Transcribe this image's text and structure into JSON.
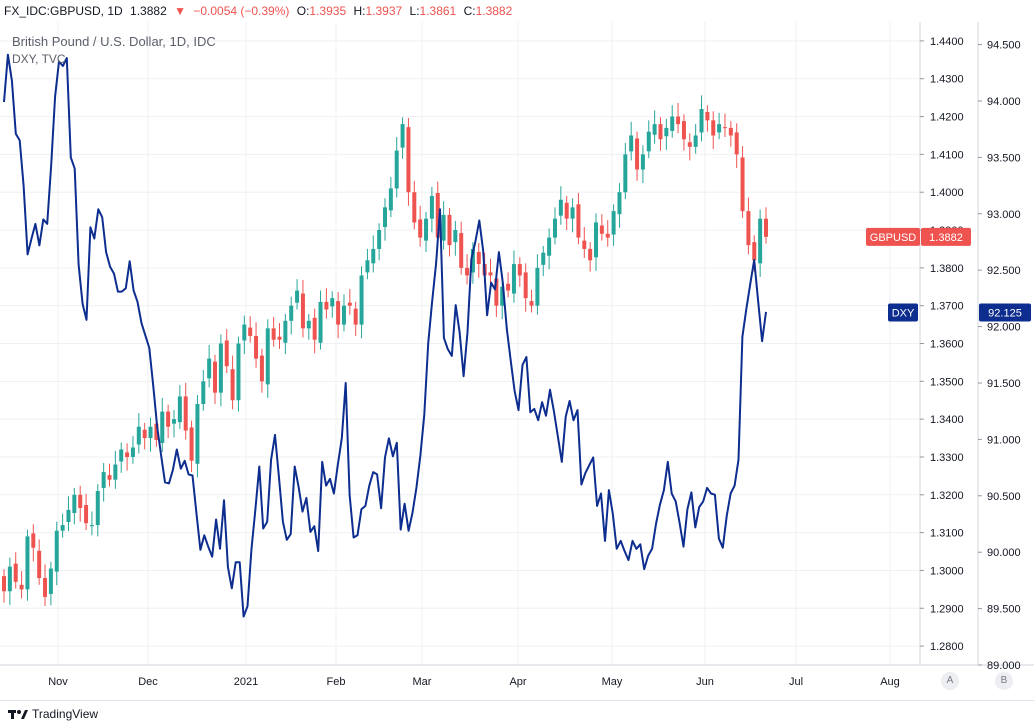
{
  "header": {
    "symbol": "FX_IDC:GBPUSD, 1D",
    "last": "1.3882",
    "arrow": "▼",
    "change": "−0.0054 (−0.39%)",
    "o_label": "O:",
    "o_value": "1.3935",
    "h_label": "H:",
    "h_value": "1.3937",
    "l_label": "L:",
    "l_value": "1.3861",
    "c_label": "C:",
    "c_value": "1.3882"
  },
  "legend": {
    "main": "British Pound / U.S. Dollar, 1D, IDC",
    "compare": "DXY, TVC"
  },
  "badges": {
    "gbpusd_label": "GBPUSD",
    "gbpusd_value": "1.3882",
    "dxy_label": "DXY",
    "dxy_value": "92.125"
  },
  "footer": {
    "brand": "TradingView",
    "btn_a": "A",
    "btn_b": "B"
  },
  "colors": {
    "up": "#26a69a",
    "down": "#ef5350",
    "dxy_line": "#0d2d8f",
    "grid": "#eef0f3",
    "axis_text": "#131722"
  },
  "chart_data": {
    "type": "line",
    "title": "British Pound / U.S. Dollar, 1D, IDC",
    "x_ticks": [
      "Nov",
      "Dec",
      "2021",
      "Feb",
      "Mar",
      "Apr",
      "May",
      "Jun",
      "Jul",
      "Aug"
    ],
    "y_left_label": "GBPUSD",
    "y_right_label": "DXY",
    "y_gbpusd_range": [
      1.275,
      1.445
    ],
    "y_gbpusd_ticks": [
      "1.4400",
      "1.4300",
      "1.4200",
      "1.4100",
      "1.4000",
      "1.3900",
      "1.3800",
      "1.3700",
      "1.3600",
      "1.3500",
      "1.3400",
      "1.3300",
      "1.3200",
      "1.3100",
      "1.3000",
      "1.2900",
      "1.2800"
    ],
    "y_dxy_range": [
      89.0,
      94.7
    ],
    "y_dxy_ticks": [
      "94.500",
      "94.000",
      "93.500",
      "93.000",
      "92.500",
      "92.000",
      "91.500",
      "91.000",
      "90.500",
      "90.000",
      "89.500",
      "89.000"
    ],
    "grid": true,
    "series": [
      {
        "name": "GBPUSD",
        "style": "candlestick",
        "close": [
          1.2945,
          1.301,
          1.297,
          1.295,
          1.309,
          1.306,
          1.298,
          1.293,
          1.3005,
          1.3105,
          1.312,
          1.316,
          1.32,
          1.3165,
          1.3125,
          1.312,
          1.321,
          1.326,
          1.324,
          1.328,
          1.332,
          1.33,
          1.3325,
          1.338,
          1.335,
          1.338,
          1.3345,
          1.342,
          1.338,
          1.34,
          1.346,
          1.337,
          1.329,
          1.344,
          1.35,
          1.356,
          1.347,
          1.36,
          1.354,
          1.345,
          1.36,
          1.365,
          1.362,
          1.356,
          1.35,
          1.364,
          1.361,
          1.361,
          1.366,
          1.37,
          1.374,
          1.364,
          1.366,
          1.361,
          1.371,
          1.369,
          1.372,
          1.365,
          1.37,
          1.37,
          1.365,
          1.378,
          1.382,
          1.385,
          1.39,
          1.396,
          1.401,
          1.411,
          1.418,
          1.4,
          1.392,
          1.388,
          1.393,
          1.399,
          1.388,
          1.394,
          1.386,
          1.39,
          1.38,
          1.378,
          1.385,
          1.381,
          1.378,
          1.378,
          1.37,
          1.375,
          1.374,
          1.381,
          1.378,
          1.372,
          1.37,
          1.38,
          1.384,
          1.388,
          1.393,
          1.398,
          1.393,
          1.396,
          1.388,
          1.385,
          1.382,
          1.392,
          1.389,
          1.388,
          1.395,
          1.4,
          1.41,
          1.415,
          1.406,
          1.41,
          1.416,
          1.418,
          1.414,
          1.417,
          1.42,
          1.418,
          1.414,
          1.412,
          1.415,
          1.422,
          1.419,
          1.415,
          1.418,
          1.417,
          1.415,
          1.41,
          1.395,
          1.386,
          1.382,
          1.393,
          1.3882
        ]
      },
      {
        "name": "DXY",
        "style": "line",
        "values": [
          93.99,
          94.41,
          94.18,
          93.71,
          93.65,
          93.25,
          92.64,
          92.78,
          92.91,
          92.72,
          92.95,
          92.91,
          93.42,
          94.04,
          94.35,
          94.31,
          94.38,
          93.5,
          93.4,
          92.55,
          92.2,
          92.06,
          92.88,
          92.78,
          93.04,
          92.97,
          92.66,
          92.53,
          92.47,
          92.31,
          92.31,
          92.34,
          92.58,
          92.32,
          92.22,
          92.03,
          91.92,
          91.81,
          91.47,
          91.11,
          90.86,
          90.62,
          90.61,
          90.73,
          90.91,
          90.74,
          90.81,
          90.69,
          90.68,
          90.34,
          90.02,
          90.15,
          90.05,
          89.96,
          90.29,
          90.03,
          90.46,
          89.87,
          89.68,
          89.91,
          89.91,
          89.43,
          89.52,
          90.03,
          90.38,
          90.76,
          90.21,
          90.27,
          90.82,
          91.04,
          90.67,
          90.27,
          90.11,
          90.16,
          90.76,
          90.58,
          90.36,
          90.48,
          90.18,
          90.23,
          90.01,
          90.8,
          90.59,
          90.65,
          90.52,
          90.78,
          91.01,
          91.5,
          90.51,
          90.13,
          90.15,
          90.38,
          90.41,
          90.59,
          90.71,
          90.69,
          90.39,
          90.84,
          91.01,
          90.85,
          90.97,
          90.2,
          90.43,
          90.19,
          90.35,
          90.57,
          90.86,
          91.22,
          91.85,
          92.22,
          92.56,
          93.04,
          91.9,
          91.8,
          91.74,
          92.19,
          91.95,
          91.56,
          91.95,
          92.6,
          92.75,
          92.94,
          92.67,
          92.1,
          92.39,
          92.33,
          92.66,
          92.39,
          91.98,
          91.7,
          91.43,
          91.26,
          91.66,
          91.73,
          91.24,
          91.27,
          91.17,
          91.33,
          91.21,
          91.44,
          91.25,
          91.03,
          90.8,
          91.2,
          91.34,
          91.17,
          91.26,
          90.6,
          90.7,
          90.77,
          90.84,
          90.41,
          90.52,
          90.1,
          90.55,
          90.34,
          90.03,
          90.1,
          90.01,
          89.93,
          90.1,
          90.03,
          90.07,
          89.85,
          89.97,
          90.03,
          90.25,
          90.42,
          90.55,
          90.8,
          90.52,
          90.45,
          90.26,
          90.05,
          90.38,
          90.53,
          90.22,
          90.4,
          90.45,
          90.57,
          90.52,
          90.51,
          90.12,
          90.04,
          90.32,
          90.52,
          90.59,
          90.82,
          91.91,
          92.16,
          92.38,
          92.59,
          92.23,
          91.87,
          92.13
        ]
      }
    ]
  }
}
